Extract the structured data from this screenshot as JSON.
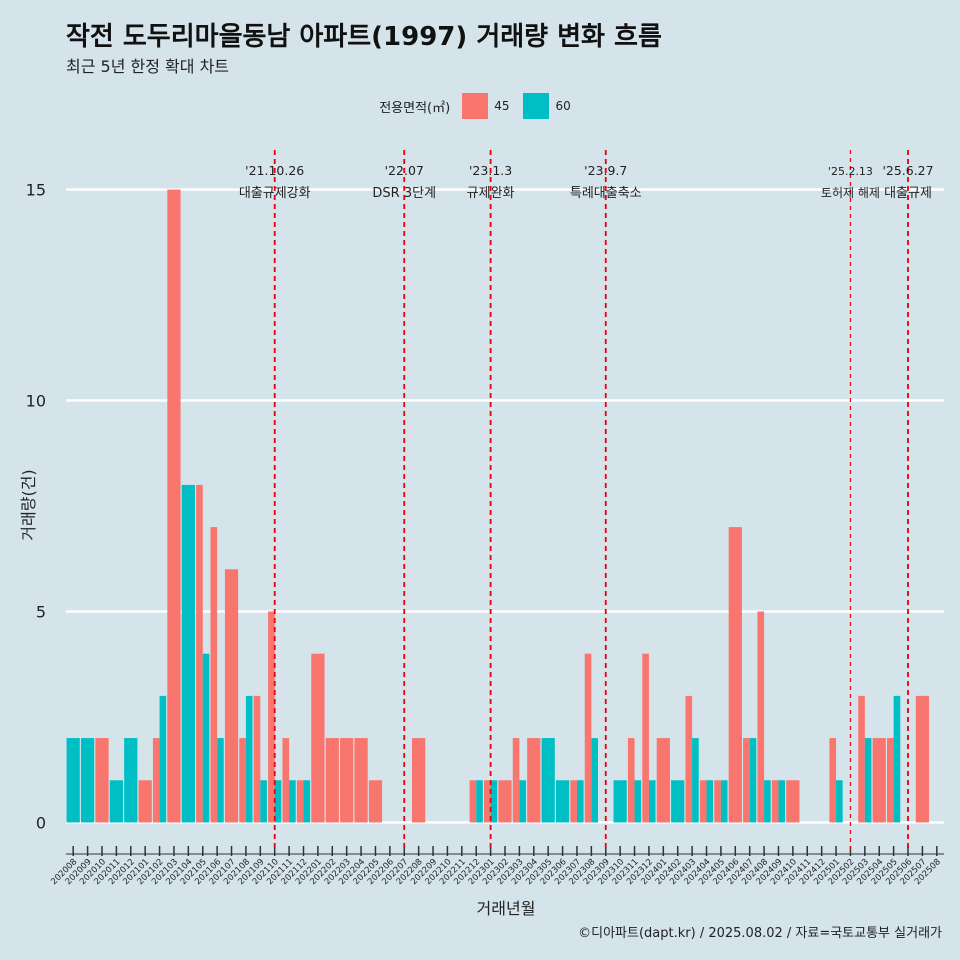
{
  "title": "작전 도두리마을동남 아파트(1997) 거래량 변화 흐름",
  "subtitle": "최근 5년 한정 확대 차트",
  "caption": "©디아파트(dapt.kr) / 2025.08.02 / 자료=국토교통부 실거래가",
  "legend": {
    "title": "전용면적(㎡)"
  },
  "colors": {
    "background": "#d5e4eb",
    "s45": "#f8766d",
    "s60": "#00bfc4",
    "vline": "#e8000b",
    "grid": "#ffffff"
  },
  "chart_data": {
    "type": "bar",
    "xlabel": "거래년월",
    "ylabel": "거래량(건)",
    "ylim": [
      -0.7,
      15.7
    ],
    "yticks": [
      0,
      5,
      10,
      15
    ],
    "grid": true,
    "legend_position": "top",
    "categories": [
      "202008",
      "202009",
      "202010",
      "202011",
      "202012",
      "202101",
      "202102",
      "202103",
      "202104",
      "202105",
      "202106",
      "202107",
      "202108",
      "202109",
      "202110",
      "202111",
      "202112",
      "202201",
      "202202",
      "202203",
      "202204",
      "202205",
      "202206",
      "202207",
      "202208",
      "202209",
      "202210",
      "202211",
      "202212",
      "202301",
      "202302",
      "202303",
      "202304",
      "202305",
      "202306",
      "202307",
      "202308",
      "202309",
      "202310",
      "202311",
      "202312",
      "202401",
      "202402",
      "202403",
      "202404",
      "202405",
      "202406",
      "202407",
      "202408",
      "202409",
      "202410",
      "202411",
      "202412",
      "202501",
      "202502",
      "202503",
      "202504",
      "202505",
      "202506",
      "202507",
      "202508"
    ],
    "series": [
      {
        "name": "45",
        "values": [
          0,
          0,
          2,
          0,
          0,
          1,
          2,
          15,
          0,
          8,
          7,
          6,
          2,
          3,
          5,
          2,
          1,
          4,
          2,
          2,
          2,
          1,
          0,
          0,
          2,
          0,
          0,
          0,
          1,
          1,
          1,
          2,
          2,
          0,
          0,
          1,
          4,
          0,
          0,
          2,
          4,
          2,
          0,
          3,
          1,
          1,
          7,
          2,
          5,
          1,
          1,
          0,
          0,
          2,
          0,
          3,
          2,
          2,
          0,
          3,
          0
        ]
      },
      {
        "name": "60",
        "values": [
          2,
          2,
          0,
          1,
          2,
          0,
          3,
          0,
          8,
          4,
          2,
          0,
          3,
          1,
          1,
          1,
          1,
          0,
          0,
          0,
          0,
          0,
          0,
          0,
          0,
          0,
          0,
          0,
          1,
          1,
          0,
          1,
          0,
          2,
          1,
          1,
          2,
          0,
          1,
          1,
          1,
          0,
          1,
          2,
          1,
          1,
          0,
          2,
          1,
          1,
          0,
          0,
          0,
          1,
          0,
          2,
          0,
          3,
          0,
          0,
          0
        ]
      }
    ],
    "annotations": [
      {
        "at": "202110",
        "date": "'21.10.26",
        "label": "대출규제강화",
        "style": "dashed"
      },
      {
        "at": "202207",
        "date": "'22.07",
        "label": "DSR 3단계",
        "style": "dashed"
      },
      {
        "at": "202301",
        "date": "'23.1.3",
        "label": "규제완화",
        "style": "dashed"
      },
      {
        "at": "202309",
        "date": "'23.9.7",
        "label": "특례대출축소",
        "style": "dashed"
      },
      {
        "at": "202502",
        "date": "'25.2.13",
        "label": "토허제 해제",
        "style": "dashed-thin"
      },
      {
        "at": "202506",
        "date": "'25.6.27",
        "label": "대출규제",
        "style": "dashed"
      }
    ]
  }
}
